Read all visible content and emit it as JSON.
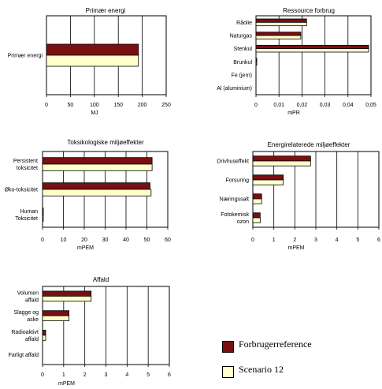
{
  "colors": {
    "reference": "#7a0f12",
    "scenario": "#ffffcc"
  },
  "legend": {
    "reference_label": "Forbrugerreference",
    "scenario_label": "Scenario 12"
  },
  "chart_data": [
    {
      "id": "primaer",
      "type": "bar",
      "orientation": "horizontal",
      "title": "Primær energi",
      "xlabel": "MJ",
      "xlim": [
        0,
        250
      ],
      "xticks": [
        "0",
        "50",
        "100",
        "150",
        "200",
        "250"
      ],
      "grid": true,
      "categories": [
        [
          "Primær energi"
        ]
      ],
      "series": [
        {
          "name": "Forbrugerreference",
          "values": [
            192
          ]
        },
        {
          "name": "Scenario 12",
          "values": [
            192
          ]
        }
      ]
    },
    {
      "id": "ressource",
      "type": "bar",
      "orientation": "horizontal",
      "title": "Ressource forbrug",
      "xlabel": "mPR",
      "xlim": [
        0,
        0.05
      ],
      "xticks": [
        "0",
        "0,01",
        "0,02",
        "0,03",
        "0,04",
        "0,05"
      ],
      "grid": true,
      "categories": [
        [
          "Råolie"
        ],
        [
          "Naturgas"
        ],
        [
          "Stenkul"
        ],
        [
          "Brunkul"
        ],
        [
          "Fe (jern)"
        ],
        [
          "Al (aluminium)"
        ]
      ],
      "series": [
        {
          "name": "Forbrugerreference",
          "values": [
            0.022,
            0.0195,
            0.049,
            0.0003,
            0,
            0
          ]
        },
        {
          "name": "Scenario 12",
          "values": [
            0.022,
            0.0195,
            0.049,
            0.0003,
            0,
            0
          ]
        }
      ]
    },
    {
      "id": "toksiko",
      "type": "bar",
      "orientation": "horizontal",
      "title": "Toksikologiske miljøeffekter",
      "xlabel": "mPEM",
      "xlim": [
        0,
        60
      ],
      "xticks": [
        "0",
        "10",
        "20",
        "30",
        "40",
        "50",
        "60"
      ],
      "grid": true,
      "categories": [
        [
          "Persistent",
          "toksicitet"
        ],
        [
          "Øko-toksicitet"
        ],
        [
          "Human",
          "Toksicitet"
        ]
      ],
      "series": [
        {
          "name": "Forbrugerreference",
          "values": [
            52.5,
            51.5,
            0.2
          ]
        },
        {
          "name": "Scenario 12",
          "values": [
            52.5,
            52,
            0.2
          ]
        }
      ]
    },
    {
      "id": "energi",
      "type": "bar",
      "orientation": "horizontal",
      "title": "Energirelaterede miljøeffekter",
      "xlabel": "mPEM",
      "xlim": [
        0,
        6
      ],
      "xticks": [
        "0",
        "1",
        "2",
        "3",
        "4",
        "5",
        "6"
      ],
      "grid": true,
      "categories": [
        [
          "Drivhuseffekt"
        ],
        [
          "Forsuring"
        ],
        [
          "Næringssalt"
        ],
        [
          "Fotokemisk",
          "ozon"
        ]
      ],
      "series": [
        {
          "name": "Forbrugerreference",
          "values": [
            2.75,
            1.45,
            0.42,
            0.35
          ]
        },
        {
          "name": "Scenario 12",
          "values": [
            2.75,
            1.45,
            0.42,
            0.35
          ]
        }
      ]
    },
    {
      "id": "affald",
      "type": "bar",
      "orientation": "horizontal",
      "title": "Affald",
      "xlabel": "mPEM",
      "xlim": [
        0,
        6
      ],
      "xticks": [
        "0",
        "1",
        "2",
        "3",
        "4",
        "5",
        "6"
      ],
      "grid": true,
      "categories": [
        [
          "Volumen",
          "affald"
        ],
        [
          "Slagge og",
          "aske"
        ],
        [
          "Radioaktivt",
          "affald"
        ],
        [
          "Farligt affald"
        ]
      ],
      "series": [
        {
          "name": "Forbrugerreference",
          "values": [
            2.3,
            1.25,
            0.15,
            0
          ]
        },
        {
          "name": "Scenario 12",
          "values": [
            2.3,
            1.25,
            0.15,
            0
          ]
        }
      ]
    }
  ]
}
